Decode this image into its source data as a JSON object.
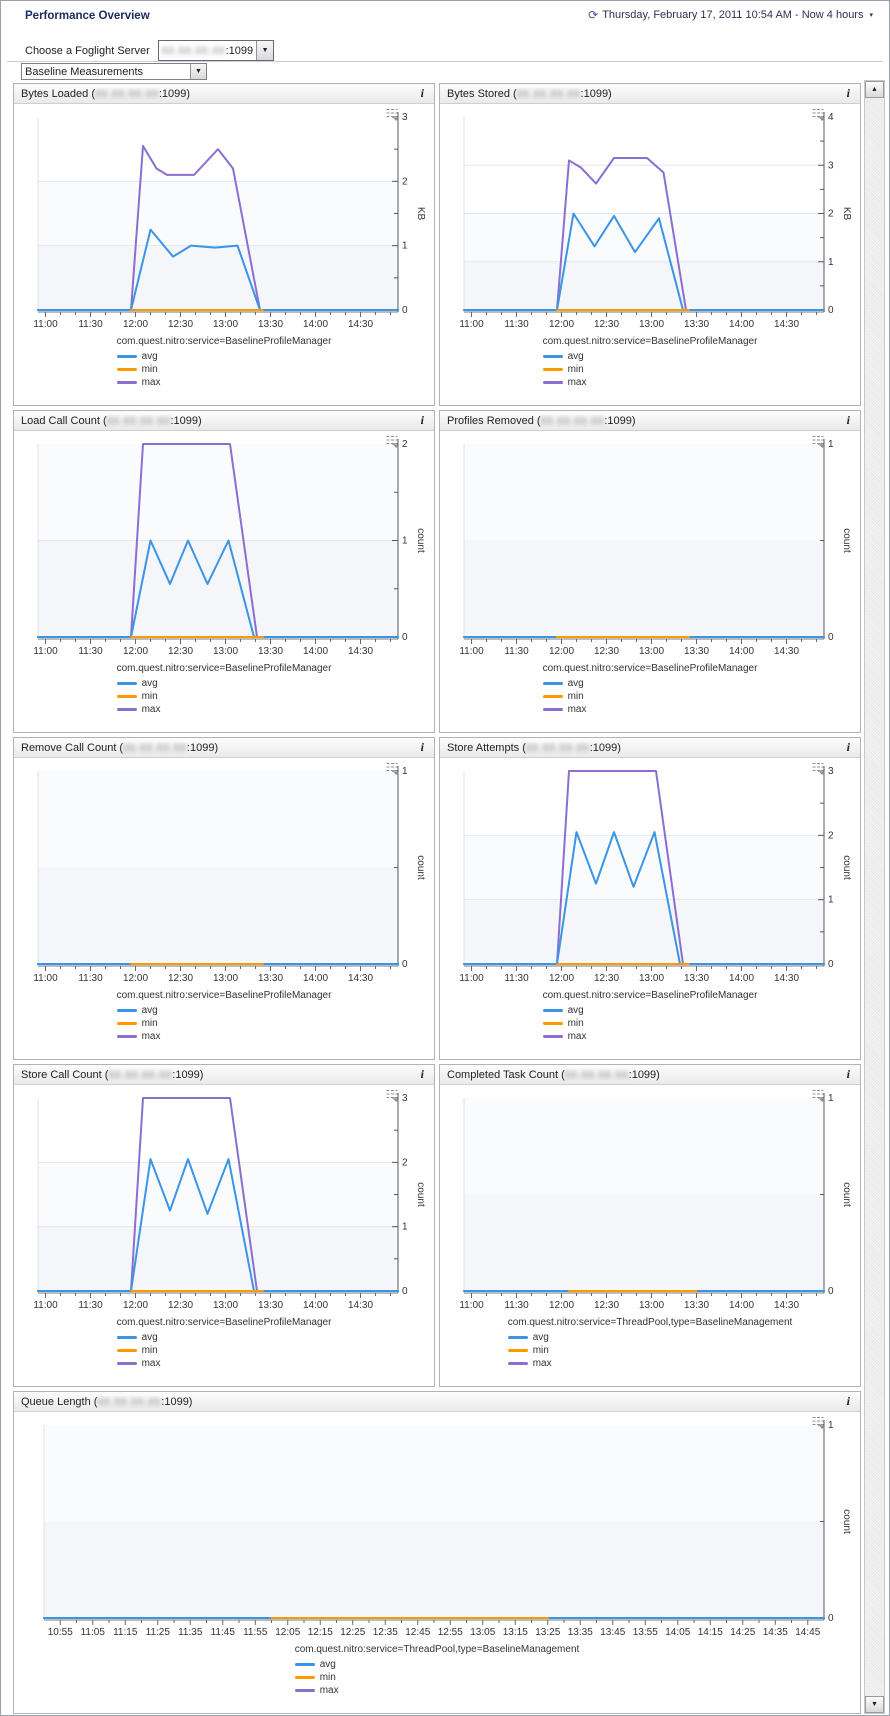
{
  "page": {
    "title": "Performance Overview",
    "time_range": "Thursday, February 17, 2011 10:54 AM - Now 4 hours",
    "server_label": "Choose a Foglight Server",
    "server_value_suffix": ":1099",
    "view_selector": "Baseline Measurements",
    "redacted_placeholder": "88.88.88.88"
  },
  "colors": {
    "avg": "#3a95e4",
    "min": "#ff9900",
    "max": "#8a6fd0"
  },
  "legend_labels": [
    "avg",
    "min",
    "max"
  ],
  "chart_data": [
    {
      "type": "line",
      "title_prefix": "Bytes Loaded (",
      "title_suffix": ":1099)",
      "unit": "KB",
      "ymax": 3,
      "wide": false,
      "service": "com.quest.nitro:service=BaselineProfileManager",
      "x_labels": [
        "11:00",
        "11:30",
        "12:00",
        "12:30",
        "13:00",
        "13:30",
        "14:00",
        "14:30"
      ],
      "x_label_step_min": 30,
      "x_minor_step_min": 10,
      "x_offset_min": 5,
      "x_domain_min": 240,
      "series": {
        "max": [
          [
            0,
            0
          ],
          [
            62,
            0
          ],
          [
            70,
            2.55
          ],
          [
            79,
            2.2
          ],
          [
            86,
            2.1
          ],
          [
            104,
            2.1
          ],
          [
            120,
            2.5
          ],
          [
            130,
            2.2
          ],
          [
            148,
            0
          ],
          [
            240,
            0
          ]
        ],
        "avg": [
          [
            0,
            0
          ],
          [
            62,
            0
          ],
          [
            75,
            1.25
          ],
          [
            90,
            0.83
          ],
          [
            102,
            1.0
          ],
          [
            118,
            0.97
          ],
          [
            133,
            1.0
          ],
          [
            148,
            0
          ],
          [
            240,
            0
          ]
        ],
        "min": [
          [
            62,
            0
          ],
          [
            150,
            0
          ]
        ]
      }
    },
    {
      "type": "line",
      "title_prefix": "Bytes Stored (",
      "title_suffix": ":1099)",
      "unit": "KB",
      "ymax": 4,
      "wide": false,
      "service": "com.quest.nitro:service=BaselineProfileManager",
      "x_labels": [
        "11:00",
        "11:30",
        "12:00",
        "12:30",
        "13:00",
        "13:30",
        "14:00",
        "14:30"
      ],
      "x_label_step_min": 30,
      "x_minor_step_min": 10,
      "x_offset_min": 5,
      "x_domain_min": 240,
      "series": {
        "max": [
          [
            0,
            0
          ],
          [
            62,
            0
          ],
          [
            70,
            3.1
          ],
          [
            78,
            2.95
          ],
          [
            88,
            2.62
          ],
          [
            100,
            3.15
          ],
          [
            122,
            3.15
          ],
          [
            133,
            2.85
          ],
          [
            148,
            0
          ],
          [
            240,
            0
          ]
        ],
        "avg": [
          [
            0,
            0
          ],
          [
            62,
            0
          ],
          [
            73,
            2.0
          ],
          [
            87,
            1.32
          ],
          [
            100,
            1.95
          ],
          [
            114,
            1.2
          ],
          [
            130,
            1.9
          ],
          [
            146,
            0
          ],
          [
            240,
            0
          ]
        ],
        "min": [
          [
            62,
            0
          ],
          [
            150,
            0
          ]
        ]
      }
    },
    {
      "type": "line",
      "title_prefix": "Load Call Count (",
      "title_suffix": ":1099)",
      "unit": "count",
      "ymax": 2,
      "wide": false,
      "service": "com.quest.nitro:service=BaselineProfileManager",
      "x_labels": [
        "11:00",
        "11:30",
        "12:00",
        "12:30",
        "13:00",
        "13:30",
        "14:00",
        "14:30"
      ],
      "x_label_step_min": 30,
      "x_minor_step_min": 10,
      "x_offset_min": 5,
      "x_domain_min": 240,
      "series": {
        "max": [
          [
            0,
            0
          ],
          [
            62,
            0
          ],
          [
            70,
            2
          ],
          [
            128,
            2
          ],
          [
            146,
            0
          ],
          [
            240,
            0
          ]
        ],
        "avg": [
          [
            0,
            0
          ],
          [
            62,
            0
          ],
          [
            75,
            1
          ],
          [
            88,
            0.55
          ],
          [
            100,
            1
          ],
          [
            113,
            0.55
          ],
          [
            127,
            1
          ],
          [
            144,
            0
          ],
          [
            240,
            0
          ]
        ],
        "min": [
          [
            62,
            0
          ],
          [
            150,
            0
          ]
        ]
      }
    },
    {
      "type": "line",
      "title_prefix": "Profiles Removed (",
      "title_suffix": ":1099)",
      "unit": "count",
      "ymax": 1,
      "wide": false,
      "service": "com.quest.nitro:service=BaselineProfileManager",
      "x_labels": [
        "11:00",
        "11:30",
        "12:00",
        "12:30",
        "13:00",
        "13:30",
        "14:00",
        "14:30"
      ],
      "x_label_step_min": 30,
      "x_minor_step_min": 10,
      "x_offset_min": 5,
      "x_domain_min": 240,
      "series": {
        "max": [
          [
            0,
            0
          ],
          [
            240,
            0
          ]
        ],
        "avg": [
          [
            0,
            0
          ],
          [
            240,
            0
          ]
        ],
        "min": [
          [
            62,
            0
          ],
          [
            150,
            0
          ]
        ]
      }
    },
    {
      "type": "line",
      "title_prefix": "Remove Call Count (",
      "title_suffix": ":1099)",
      "unit": "count",
      "ymax": 1,
      "wide": false,
      "service": "com.quest.nitro:service=BaselineProfileManager",
      "x_labels": [
        "11:00",
        "11:30",
        "12:00",
        "12:30",
        "13:00",
        "13:30",
        "14:00",
        "14:30"
      ],
      "x_label_step_min": 30,
      "x_minor_step_min": 10,
      "x_offset_min": 5,
      "x_domain_min": 240,
      "series": {
        "max": [
          [
            0,
            0
          ],
          [
            240,
            0
          ]
        ],
        "avg": [
          [
            0,
            0
          ],
          [
            240,
            0
          ]
        ],
        "min": [
          [
            62,
            0
          ],
          [
            150,
            0
          ]
        ]
      }
    },
    {
      "type": "line",
      "title_prefix": "Store Attempts (",
      "title_suffix": ":1099)",
      "unit": "count",
      "ymax": 3,
      "wide": false,
      "service": "com.quest.nitro:service=BaselineProfileManager",
      "x_labels": [
        "11:00",
        "11:30",
        "12:00",
        "12:30",
        "13:00",
        "13:30",
        "14:00",
        "14:30"
      ],
      "x_label_step_min": 30,
      "x_minor_step_min": 10,
      "x_offset_min": 5,
      "x_domain_min": 240,
      "series": {
        "max": [
          [
            0,
            0
          ],
          [
            62,
            0
          ],
          [
            70,
            3
          ],
          [
            128,
            3
          ],
          [
            146,
            0
          ],
          [
            240,
            0
          ]
        ],
        "avg": [
          [
            0,
            0
          ],
          [
            62,
            0
          ],
          [
            75,
            2.05
          ],
          [
            88,
            1.25
          ],
          [
            100,
            2.05
          ],
          [
            113,
            1.2
          ],
          [
            127,
            2.05
          ],
          [
            144,
            0
          ],
          [
            240,
            0
          ]
        ],
        "min": [
          [
            62,
            0
          ],
          [
            150,
            0
          ]
        ]
      }
    },
    {
      "type": "line",
      "title_prefix": "Store Call Count (",
      "title_suffix": ":1099)",
      "unit": "count",
      "ymax": 3,
      "wide": false,
      "service": "com.quest.nitro:service=BaselineProfileManager",
      "x_labels": [
        "11:00",
        "11:30",
        "12:00",
        "12:30",
        "13:00",
        "13:30",
        "14:00",
        "14:30"
      ],
      "x_label_step_min": 30,
      "x_minor_step_min": 10,
      "x_offset_min": 5,
      "x_domain_min": 240,
      "series": {
        "max": [
          [
            0,
            0
          ],
          [
            62,
            0
          ],
          [
            70,
            3
          ],
          [
            128,
            3
          ],
          [
            146,
            0
          ],
          [
            240,
            0
          ]
        ],
        "avg": [
          [
            0,
            0
          ],
          [
            62,
            0
          ],
          [
            75,
            2.05
          ],
          [
            88,
            1.25
          ],
          [
            100,
            2.05
          ],
          [
            113,
            1.2
          ],
          [
            127,
            2.05
          ],
          [
            144,
            0
          ],
          [
            240,
            0
          ]
        ],
        "min": [
          [
            62,
            0
          ],
          [
            150,
            0
          ]
        ]
      }
    },
    {
      "type": "line",
      "title_prefix": "Completed Task Count (",
      "title_suffix": ":1099)",
      "unit": "count",
      "ymax": 1,
      "wide": false,
      "service": "com.quest.nitro:service=ThreadPool,type=BaselineManagement",
      "x_labels": [
        "11:00",
        "11:30",
        "12:00",
        "12:30",
        "13:00",
        "13:30",
        "14:00",
        "14:30"
      ],
      "x_label_step_min": 30,
      "x_minor_step_min": 10,
      "x_offset_min": 5,
      "x_domain_min": 240,
      "series": {
        "max": [
          [
            0,
            0
          ],
          [
            240,
            0
          ]
        ],
        "avg": [
          [
            0,
            0
          ],
          [
            240,
            0
          ]
        ],
        "min": [
          [
            70,
            0
          ],
          [
            155,
            0
          ]
        ]
      }
    },
    {
      "type": "line",
      "title_prefix": "Queue Length (",
      "title_suffix": ":1099)",
      "unit": "count",
      "ymax": 1,
      "wide": true,
      "service": "com.quest.nitro:service=ThreadPool,type=BaselineManagement",
      "x_labels": [
        "10:55",
        "11:05",
        "11:15",
        "11:25",
        "11:35",
        "11:45",
        "11:55",
        "12:05",
        "12:15",
        "12:25",
        "12:35",
        "12:45",
        "12:55",
        "13:05",
        "13:15",
        "13:25",
        "13:35",
        "13:45",
        "13:55",
        "14:05",
        "14:15",
        "14:25",
        "14:35",
        "14:45"
      ],
      "x_label_step_min": 10,
      "x_minor_step_min": 5,
      "x_offset_min": 5,
      "x_domain_min": 240,
      "series": {
        "max": [
          [
            0,
            0
          ],
          [
            240,
            0
          ]
        ],
        "avg": [
          [
            0,
            0
          ],
          [
            240,
            0
          ]
        ],
        "min": [
          [
            70,
            0
          ],
          [
            155,
            0
          ]
        ]
      }
    }
  ]
}
